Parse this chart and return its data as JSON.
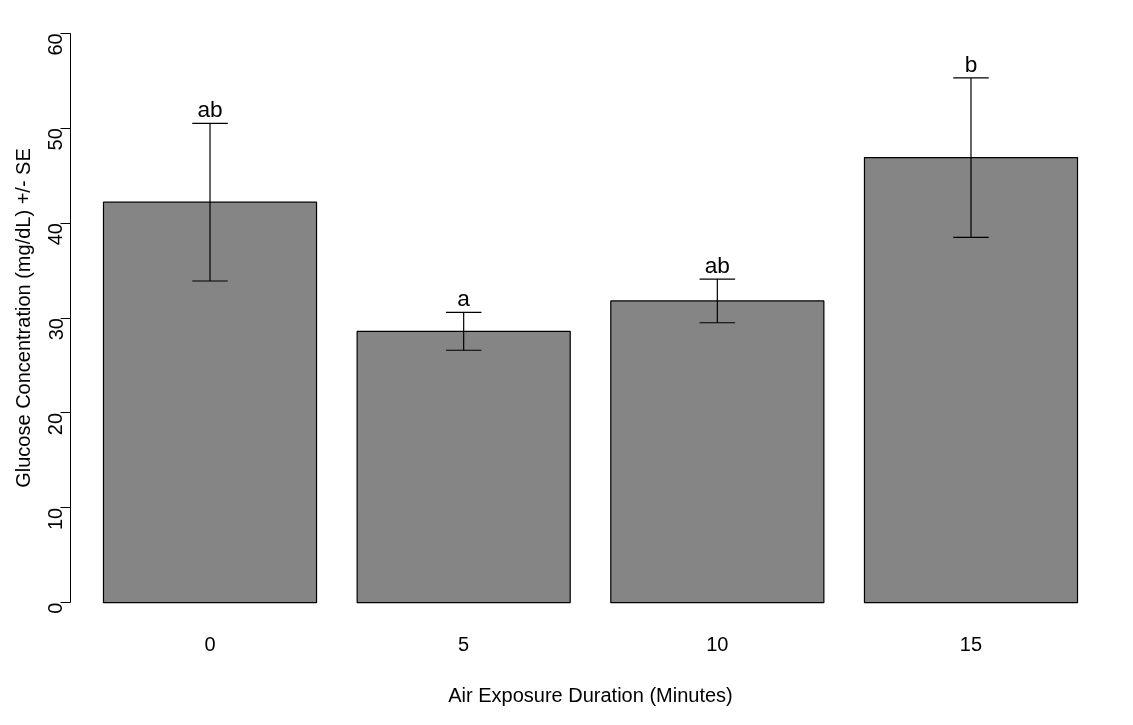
{
  "chart_data": {
    "type": "bar",
    "xlabel": "Air Exposure Duration (Minutes)",
    "ylabel": "Glucose Concentration (mg/dL) +/- SE",
    "categories": [
      "0",
      "5",
      "10",
      "15"
    ],
    "values": [
      42.2,
      28.6,
      31.8,
      46.9
    ],
    "errors": [
      8.3,
      2.0,
      2.3,
      8.4
    ],
    "color": "#858585",
    "ylim": [
      0,
      60
    ],
    "yticks": [
      0,
      10,
      20,
      30,
      40,
      50,
      60
    ],
    "grid": false,
    "annotations": [
      {
        "text": "ab",
        "x": "0",
        "y": 50.5
      },
      {
        "text": "a",
        "x": "5",
        "y": 30.6
      },
      {
        "text": "ab",
        "x": "10",
        "y": 34.1
      },
      {
        "text": "b",
        "x": "15",
        "y": 55.3
      }
    ]
  }
}
